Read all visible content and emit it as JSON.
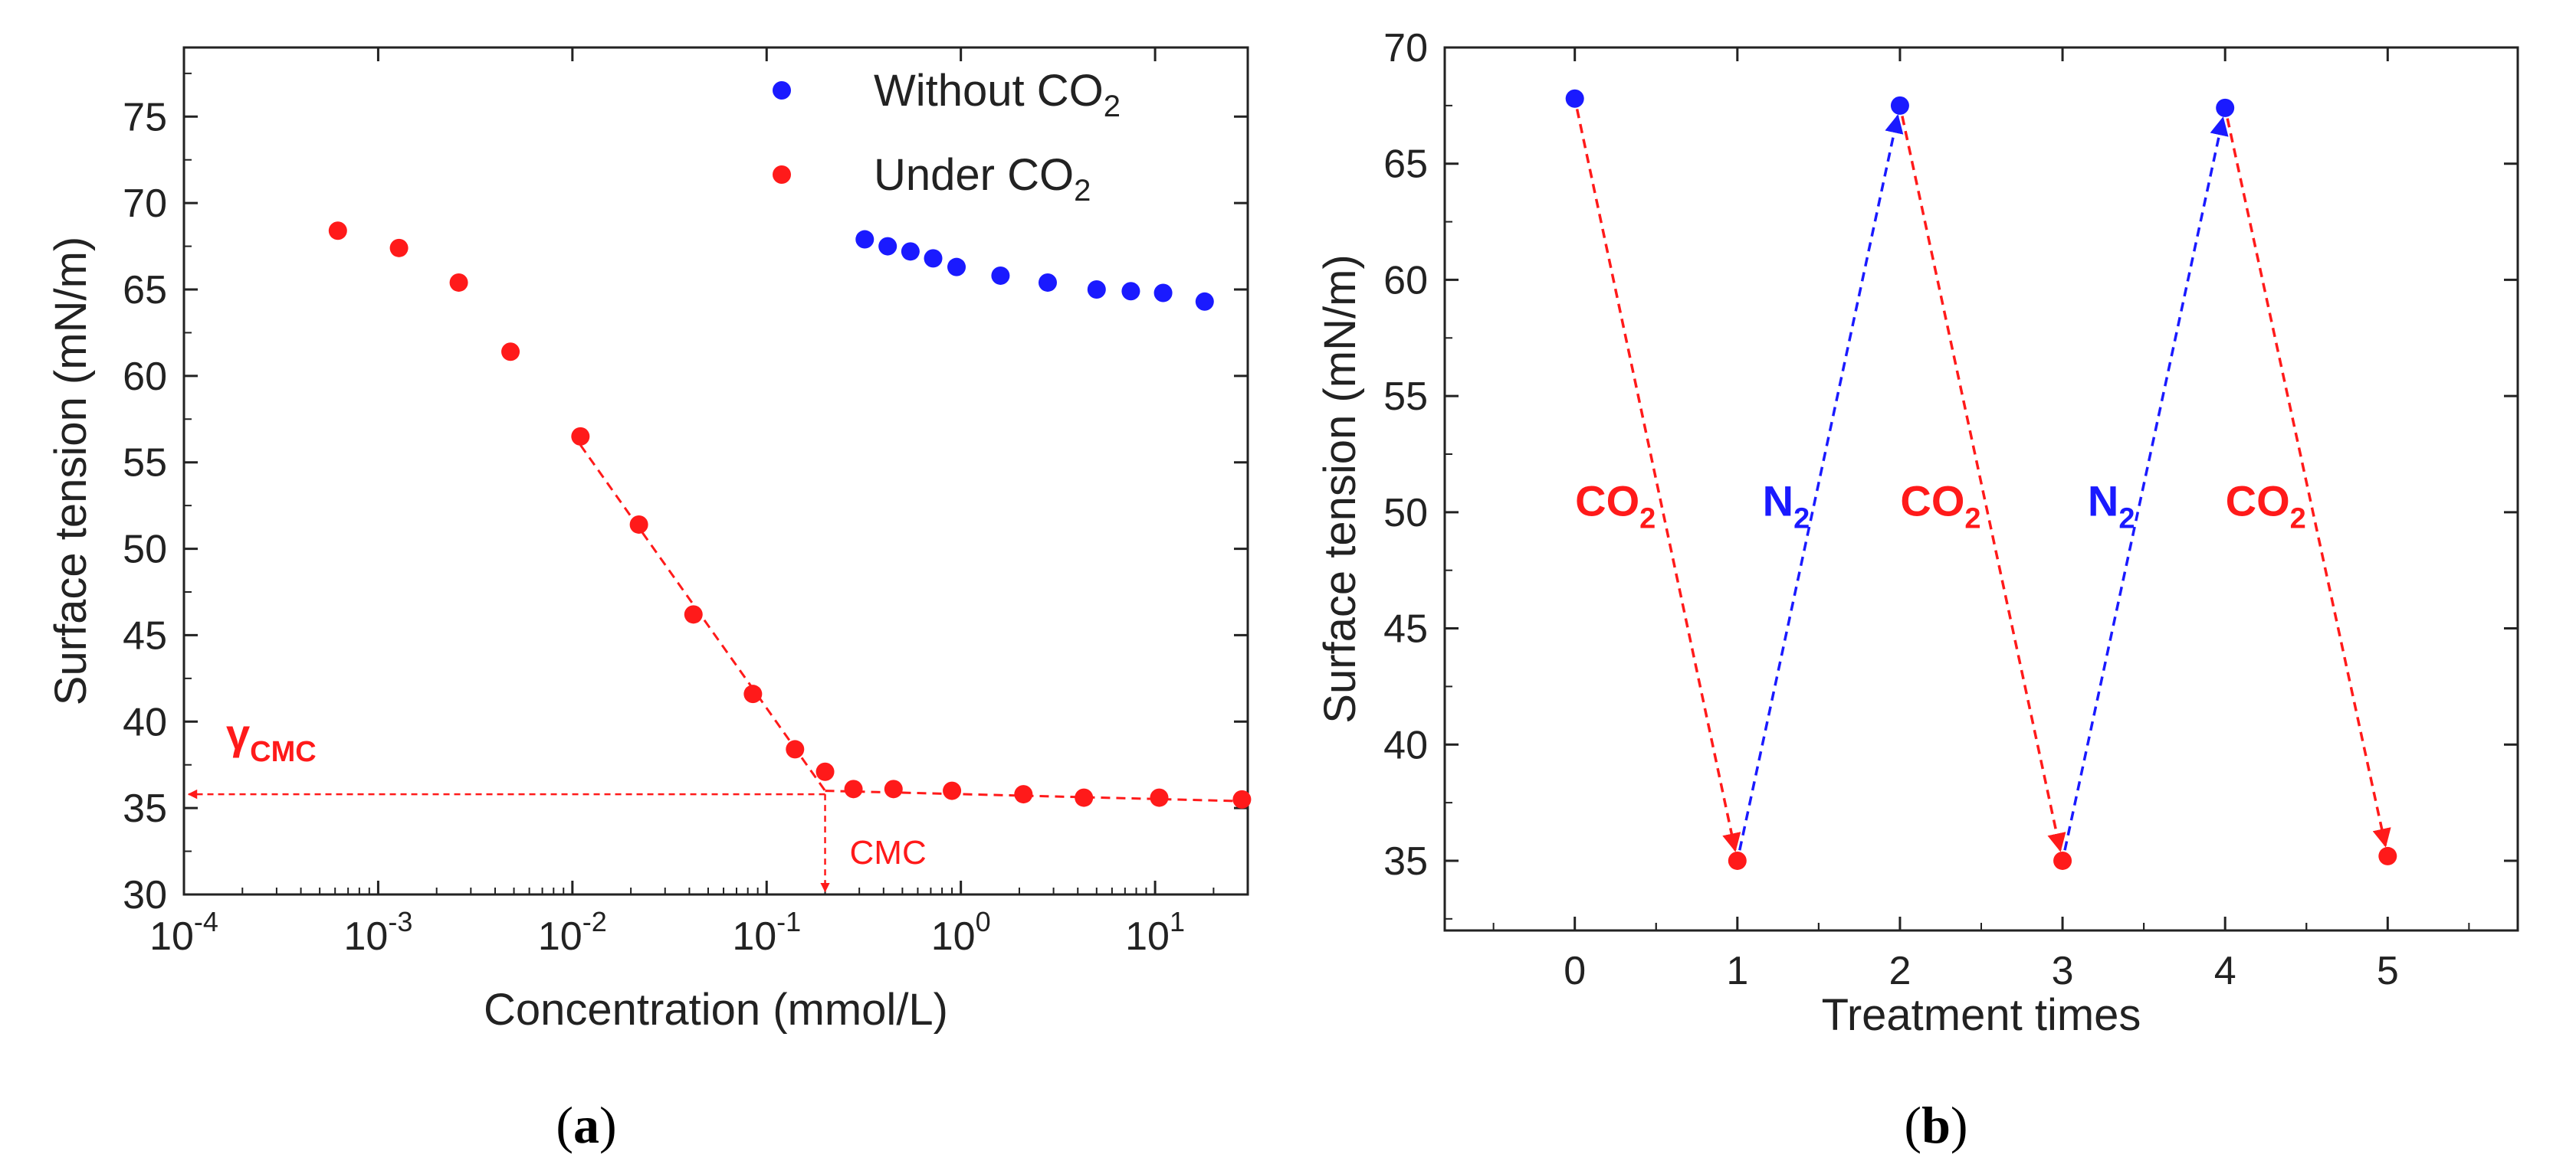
{
  "chart_data": [
    {
      "panel": "a",
      "type": "scatter",
      "xscale": "log",
      "xlabel": "Concentration (mmol/L)",
      "ylabel": "Surface tension (mN/m)",
      "xlim": [
        0.0001,
        30
      ],
      "ylim": [
        30,
        79
      ],
      "xticks": [
        {
          "value": 0.0001,
          "base": "10",
          "exp": "-4"
        },
        {
          "value": 0.001,
          "base": "10",
          "exp": "-3"
        },
        {
          "value": 0.01,
          "base": "10",
          "exp": "-2"
        },
        {
          "value": 0.1,
          "base": "10",
          "exp": "-1"
        },
        {
          "value": 1,
          "base": "10",
          "exp": "0"
        },
        {
          "value": 10,
          "base": "10",
          "exp": "1"
        }
      ],
      "yticks": [
        30,
        35,
        40,
        45,
        50,
        55,
        60,
        65,
        70,
        75
      ],
      "legend_position": "top-right",
      "series": [
        {
          "name": "Without CO2",
          "label_main": "Without CO",
          "label_sub": "2",
          "color": "#1a1aff",
          "x": [
            0.32,
            0.42,
            0.55,
            0.72,
            0.95,
            1.6,
            2.8,
            5.0,
            7.5,
            11.0,
            18.0
          ],
          "y": [
            67.9,
            67.5,
            67.2,
            66.8,
            66.3,
            65.8,
            65.4,
            65.0,
            64.9,
            64.8,
            64.3
          ]
        },
        {
          "name": "Under CO2",
          "label_main": "Under CO",
          "label_sub": "2",
          "color": "#ff1a1a",
          "x": [
            0.00062,
            0.00128,
            0.0026,
            0.0048,
            0.011,
            0.022,
            0.042,
            0.085,
            0.14,
            0.2,
            0.28,
            0.45,
            0.9,
            2.1,
            4.3,
            10.5,
            28.0
          ],
          "y": [
            68.4,
            67.4,
            65.4,
            61.4,
            56.5,
            51.4,
            46.2,
            41.6,
            38.4,
            37.1,
            36.1,
            36.1,
            36.0,
            35.8,
            35.6,
            35.6,
            35.5
          ]
        }
      ],
      "fit_lines": [
        {
          "x": [
            0.011,
            0.2
          ],
          "y": [
            56.0,
            36.0
          ]
        },
        {
          "x": [
            0.2,
            28.0
          ],
          "y": [
            36.0,
            35.4
          ]
        }
      ],
      "annotations": {
        "gamma_main": "γ",
        "gamma_sub": "CMC",
        "cmc_label": "CMC",
        "cmc_x": 0.2,
        "cmc_y": 35.8
      }
    },
    {
      "panel": "b",
      "type": "line",
      "xlabel": "Treatment times",
      "ylabel": "Surface tension (mN/m)",
      "xlim": [
        -0.8,
        5.8
      ],
      "ylim": [
        32,
        70
      ],
      "xticks": [
        0,
        1,
        2,
        3,
        4,
        5
      ],
      "yticks": [
        35,
        40,
        45,
        50,
        55,
        60,
        65,
        70
      ],
      "points": [
        {
          "x": 0,
          "y": 67.8,
          "color": "#1a1aff"
        },
        {
          "x": 1,
          "y": 35.0,
          "color": "#ff1a1a"
        },
        {
          "x": 2,
          "y": 67.5,
          "color": "#1a1aff"
        },
        {
          "x": 3,
          "y": 35.0,
          "color": "#ff1a1a"
        },
        {
          "x": 4,
          "y": 67.4,
          "color": "#1a1aff"
        },
        {
          "x": 5,
          "y": 35.2,
          "color": "#ff1a1a"
        }
      ],
      "arrows": [
        {
          "from": 0,
          "to": 1,
          "color": "#ff1a1a"
        },
        {
          "from": 1,
          "to": 2,
          "color": "#1a1aff"
        },
        {
          "from": 2,
          "to": 3,
          "color": "#ff1a1a"
        },
        {
          "from": 3,
          "to": 4,
          "color": "#1a1aff"
        },
        {
          "from": 4,
          "to": 5,
          "color": "#ff1a1a"
        }
      ],
      "gas_labels": [
        {
          "main": "CO",
          "sub": "2",
          "color": "#ff1a1a",
          "x": 0.25,
          "y": 50.5
        },
        {
          "main": "N",
          "sub": "2",
          "color": "#1a1aff",
          "x": 1.3,
          "y": 50.5
        },
        {
          "main": "CO",
          "sub": "2",
          "color": "#ff1a1a",
          "x": 2.25,
          "y": 50.5
        },
        {
          "main": "N",
          "sub": "2",
          "color": "#1a1aff",
          "x": 3.3,
          "y": 50.5
        },
        {
          "main": "CO",
          "sub": "2",
          "color": "#ff1a1a",
          "x": 4.25,
          "y": 50.5
        }
      ]
    }
  ],
  "panel_labels": [
    "a",
    "b"
  ]
}
